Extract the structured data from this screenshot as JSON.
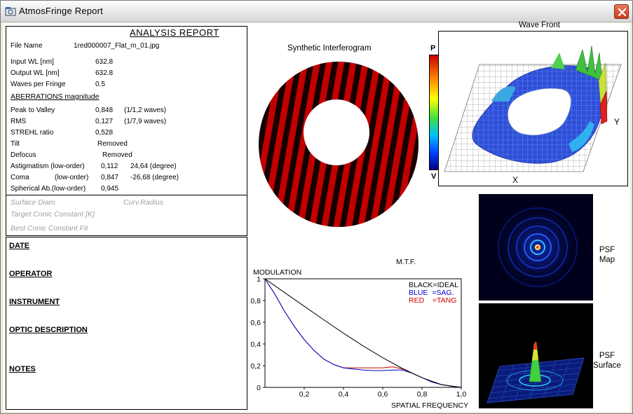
{
  "window": {
    "title": "AtmosFringe  Report"
  },
  "report": {
    "title": "ANALYSIS  REPORT",
    "file_name": {
      "label": "File Name",
      "value": "1red000007_Flat_m_01.jpg"
    },
    "input_wl": {
      "label": "Input  WL [nm]",
      "value": "632.8"
    },
    "output_wl": {
      "label": "Output WL [nm]",
      "value": "632.8"
    },
    "waves_per_fringe": {
      "label": "Waves per Fringe",
      "value": "0.5"
    },
    "aberrations_heading": "ABERRATIONS magnitude",
    "peak_to_valley": {
      "label": "Peak to Valley",
      "value": "0,848",
      "extra": "(1/1,2 waves)"
    },
    "rms": {
      "label": "RMS",
      "value": "0,127",
      "extra": "(1/7,9 waves)"
    },
    "strehl": {
      "label": "STREHL ratio",
      "value": "0,528"
    },
    "tilt": {
      "label": "Tilt",
      "value": "Removed"
    },
    "defocus": {
      "label": "Defocus",
      "value": "Removed"
    },
    "astigmatism": {
      "label": "Astigmatism  (low-order)",
      "value": "0,112",
      "extra": "24,64  (degree)"
    },
    "coma": {
      "label": "Coma",
      "order": "(low-order)",
      "value": "0,847",
      "extra": "-26,68  (degree)"
    },
    "spherical": {
      "label": "Spherical Ab.(low-order)",
      "value": "0,945"
    },
    "surface_diam": "Surface Diam",
    "curv_radius": "Curv.Radius",
    "target_conic": "Target Conic Constant [K]",
    "best_conic": "Best Conic Constant Fit"
  },
  "notes": {
    "date": "DATE",
    "operator": "OPERATOR",
    "instrument": "INSTRUMENT",
    "optic_description": "OPTIC DESCRIPTION",
    "notes": "NOTES"
  },
  "interferogram": {
    "caption": "Synthetic Interferogram"
  },
  "colorbar": {
    "top": "P",
    "bottom": "V"
  },
  "wavefront": {
    "caption": "Wave Front",
    "x_label": "X",
    "y_label": "Y"
  },
  "psf_map": {
    "label_1": "PSF",
    "label_2": "Map"
  },
  "psf_surface": {
    "label_1": "PSF",
    "label_2": "Surface"
  },
  "chart_data": {
    "type": "line",
    "title": "M.T.F.",
    "xlabel": "SPATIAL FREQUENCY",
    "ylabel": "MODULATION",
    "xlim": [
      0,
      1
    ],
    "ylim": [
      0,
      1
    ],
    "x_ticks": [
      "0,2",
      "0,4",
      "0,6",
      "0,8",
      "1,0"
    ],
    "y_ticks": [
      "0",
      "0,2",
      "0,4",
      "0,6",
      "0,8",
      "1"
    ],
    "legend": [
      "BLACK=IDEAL",
      "BLUE  =SAG.",
      "RED    =TANG"
    ],
    "legend_position": "top-right",
    "series": [
      {
        "color": "#000000",
        "x": [
          0,
          0.1,
          0.2,
          0.3,
          0.4,
          0.5,
          0.6,
          0.7,
          0.8,
          0.9,
          1.0
        ],
        "y": [
          1.0,
          0.873,
          0.747,
          0.622,
          0.499,
          0.382,
          0.273,
          0.174,
          0.089,
          0.025,
          0.0
        ]
      },
      {
        "color": "#0000cc",
        "x": [
          0,
          0.05,
          0.1,
          0.15,
          0.2,
          0.25,
          0.3,
          0.35,
          0.4,
          0.45,
          0.5,
          0.55,
          0.6,
          0.65,
          0.7,
          0.75,
          0.8,
          0.85,
          0.9,
          0.95,
          1.0
        ],
        "y": [
          1.0,
          0.86,
          0.7,
          0.56,
          0.44,
          0.34,
          0.26,
          0.21,
          0.18,
          0.17,
          0.16,
          0.155,
          0.155,
          0.16,
          0.16,
          0.13,
          0.09,
          0.05,
          0.025,
          0.01,
          0.0
        ]
      },
      {
        "color": "#cc0000",
        "x": [
          0,
          0.05,
          0.1,
          0.15,
          0.2,
          0.25,
          0.3,
          0.35,
          0.4,
          0.45,
          0.5,
          0.55,
          0.6,
          0.65,
          0.7,
          0.75,
          0.8,
          0.85,
          0.9,
          0.95,
          1.0
        ],
        "y": [
          1.0,
          0.86,
          0.7,
          0.56,
          0.44,
          0.34,
          0.26,
          0.21,
          0.18,
          0.18,
          0.18,
          0.18,
          0.18,
          0.19,
          0.17,
          0.13,
          0.09,
          0.05,
          0.025,
          0.01,
          0.0
        ]
      }
    ]
  }
}
